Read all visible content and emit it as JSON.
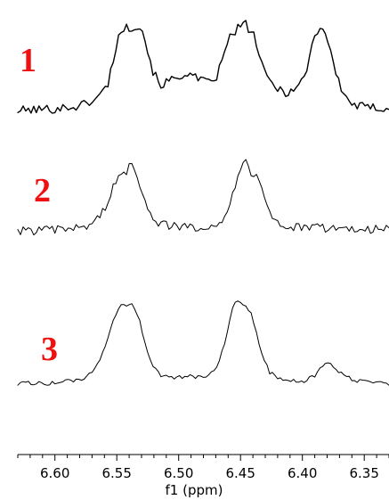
{
  "chart_data": {
    "type": "line",
    "xlabel": "f1 (ppm)",
    "xlim": [
      6.63,
      6.33
    ],
    "x_reversed": true,
    "ticks": [
      6.6,
      6.55,
      6.5,
      6.45,
      6.4,
      6.35
    ],
    "tick_labels": [
      "6.60",
      "6.55",
      "6.50",
      "6.45",
      "6.40",
      "6.35"
    ],
    "label_color": "#ee1111",
    "line_color": "#000000",
    "grid": false,
    "series": [
      {
        "name": "1",
        "noise": 0.05,
        "baseline": 0.0,
        "points": [
          [
            6.63,
            0.0
          ],
          [
            6.6,
            0.02
          ],
          [
            6.58,
            0.05
          ],
          [
            6.565,
            0.14
          ],
          [
            6.557,
            0.3
          ],
          [
            6.552,
            0.62
          ],
          [
            6.548,
            0.84
          ],
          [
            6.545,
            0.9
          ],
          [
            6.54,
            0.91
          ],
          [
            6.536,
            0.93
          ],
          [
            6.532,
            0.94
          ],
          [
            6.529,
            0.88
          ],
          [
            6.525,
            0.65
          ],
          [
            6.52,
            0.4
          ],
          [
            6.514,
            0.28
          ],
          [
            6.507,
            0.33
          ],
          [
            6.5,
            0.36
          ],
          [
            6.495,
            0.42
          ],
          [
            6.49,
            0.38
          ],
          [
            6.484,
            0.34
          ],
          [
            6.476,
            0.3
          ],
          [
            6.469,
            0.38
          ],
          [
            6.464,
            0.58
          ],
          [
            6.459,
            0.8
          ],
          [
            6.455,
            0.86
          ],
          [
            6.451,
            0.92
          ],
          [
            6.447,
            0.96
          ],
          [
            6.443,
            0.9
          ],
          [
            6.439,
            0.82
          ],
          [
            6.435,
            0.62
          ],
          [
            6.43,
            0.38
          ],
          [
            6.422,
            0.26
          ],
          [
            6.413,
            0.2
          ],
          [
            6.405,
            0.24
          ],
          [
            6.398,
            0.38
          ],
          [
            6.393,
            0.66
          ],
          [
            6.39,
            0.84
          ],
          [
            6.386,
            0.91
          ],
          [
            6.383,
            0.9
          ],
          [
            6.38,
            0.8
          ],
          [
            6.376,
            0.58
          ],
          [
            6.371,
            0.32
          ],
          [
            6.365,
            0.14
          ],
          [
            6.357,
            0.05
          ],
          [
            6.345,
            0.03
          ],
          [
            6.33,
            0.03
          ]
        ]
      },
      {
        "name": "2",
        "noise": 0.06,
        "baseline": 0.0,
        "points": [
          [
            6.63,
            0.0
          ],
          [
            6.6,
            0.01
          ],
          [
            6.58,
            0.04
          ],
          [
            6.57,
            0.1
          ],
          [
            6.563,
            0.22
          ],
          [
            6.557,
            0.4
          ],
          [
            6.552,
            0.62
          ],
          [
            6.548,
            0.78
          ],
          [
            6.544,
            0.76
          ],
          [
            6.54,
            0.88
          ],
          [
            6.536,
            0.89
          ],
          [
            6.533,
            0.74
          ],
          [
            6.529,
            0.52
          ],
          [
            6.524,
            0.28
          ],
          [
            6.517,
            0.12
          ],
          [
            6.505,
            0.06
          ],
          [
            6.49,
            0.05
          ],
          [
            6.475,
            0.07
          ],
          [
            6.466,
            0.12
          ],
          [
            6.46,
            0.28
          ],
          [
            6.455,
            0.6
          ],
          [
            6.451,
            0.82
          ],
          [
            6.448,
            0.97
          ],
          [
            6.445,
            0.9
          ],
          [
            6.441,
            0.78
          ],
          [
            6.437,
            0.76
          ],
          [
            6.433,
            0.64
          ],
          [
            6.429,
            0.4
          ],
          [
            6.424,
            0.18
          ],
          [
            6.415,
            0.05
          ],
          [
            6.4,
            0.04
          ],
          [
            6.38,
            0.04
          ],
          [
            6.36,
            0.03
          ],
          [
            6.33,
            0.02
          ]
        ]
      },
      {
        "name": "3",
        "noise": 0.025,
        "baseline": 0.0,
        "points": [
          [
            6.63,
            0.0
          ],
          [
            6.605,
            0.0
          ],
          [
            6.59,
            0.02
          ],
          [
            6.578,
            0.05
          ],
          [
            6.57,
            0.12
          ],
          [
            6.563,
            0.28
          ],
          [
            6.557,
            0.55
          ],
          [
            6.552,
            0.78
          ],
          [
            6.548,
            0.93
          ],
          [
            6.545,
            0.95
          ],
          [
            6.541,
            0.94
          ],
          [
            6.538,
            0.96
          ],
          [
            6.535,
            0.9
          ],
          [
            6.531,
            0.72
          ],
          [
            6.527,
            0.48
          ],
          [
            6.522,
            0.25
          ],
          [
            6.515,
            0.1
          ],
          [
            6.505,
            0.06
          ],
          [
            6.49,
            0.08
          ],
          [
            6.478,
            0.08
          ],
          [
            6.47,
            0.18
          ],
          [
            6.464,
            0.42
          ],
          [
            6.459,
            0.72
          ],
          [
            6.456,
            0.92
          ],
          [
            6.453,
            0.98
          ],
          [
            6.449,
            0.94
          ],
          [
            6.446,
            0.91
          ],
          [
            6.442,
            0.86
          ],
          [
            6.438,
            0.64
          ],
          [
            6.433,
            0.36
          ],
          [
            6.426,
            0.12
          ],
          [
            6.415,
            0.03
          ],
          [
            6.4,
            0.02
          ],
          [
            6.39,
            0.08
          ],
          [
            6.384,
            0.2
          ],
          [
            6.379,
            0.27
          ],
          [
            6.374,
            0.2
          ],
          [
            6.368,
            0.1
          ],
          [
            6.358,
            0.03
          ],
          [
            6.345,
            0.01
          ],
          [
            6.33,
            0.0
          ]
        ]
      }
    ]
  }
}
